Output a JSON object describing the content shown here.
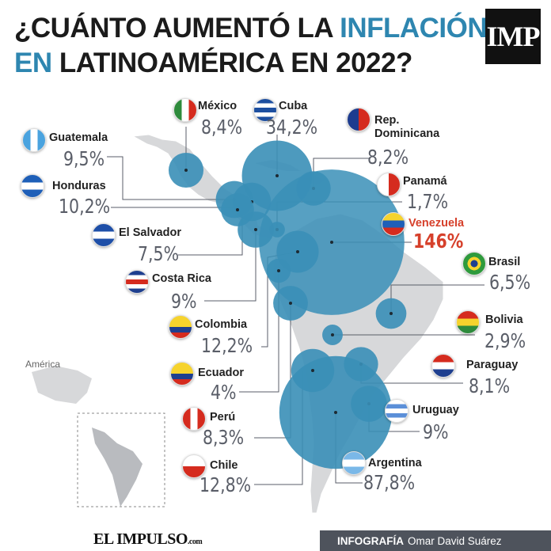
{
  "title": {
    "line1_pre": "¿CUÁNTO AUMENTÓ LA ",
    "line1_hl": "INFLACIÓN",
    "line2_hl": "EN",
    "line2_rest": " LATINOAMÉRICA EN 2022?"
  },
  "logo": "IMP",
  "inset_label": "América",
  "footer": {
    "brand": "EL IMPULSO",
    "brand_suffix": ".com",
    "credit_label": "INFOGRAFÍA",
    "credit_name": "Omar David Suárez"
  },
  "colors": {
    "accent": "#2e86b0",
    "bubble": "#3a8fb7",
    "highlight": "#d6402b",
    "map": "#d7d8da"
  },
  "countries": [
    {
      "name": "México",
      "value": "8,4%",
      "inflation": 8.4,
      "flag": "mexico-flag"
    },
    {
      "name": "Cuba",
      "value": "34,2%",
      "inflation": 34.2,
      "flag": "cuba-flag"
    },
    {
      "name": "Rep.\nDominicana",
      "value": "8,2%",
      "inflation": 8.2,
      "flag": "dominican-republic-flag"
    },
    {
      "name": "Guatemala",
      "value": "9,5%",
      "inflation": 9.5,
      "flag": "guatemala-flag"
    },
    {
      "name": "Honduras",
      "value": "10,2%",
      "inflation": 10.2,
      "flag": "honduras-flag"
    },
    {
      "name": "Panamá",
      "value": "1,7%",
      "inflation": 1.7,
      "flag": "panama-flag"
    },
    {
      "name": "Venezuela",
      "value": "146%",
      "inflation": 146,
      "flag": "venezuela-flag"
    },
    {
      "name": "El Salvador",
      "value": "7,5%",
      "inflation": 7.5,
      "flag": "el-salvador-flag"
    },
    {
      "name": "Brasil",
      "value": "6,5%",
      "inflation": 6.5,
      "flag": "brazil-flag"
    },
    {
      "name": "Costa Rica",
      "value": "9%",
      "inflation": 9,
      "flag": "costa-rica-flag"
    },
    {
      "name": "Bolivia",
      "value": "2,9%",
      "inflation": 2.9,
      "flag": "bolivia-flag"
    },
    {
      "name": "Colombia",
      "value": "12,2%",
      "inflation": 12.2,
      "flag": "colombia-flag"
    },
    {
      "name": "Paraguay",
      "value": "8,1%",
      "inflation": 8.1,
      "flag": "paraguay-flag"
    },
    {
      "name": "Ecuador",
      "value": "4%",
      "inflation": 4,
      "flag": "ecuador-flag"
    },
    {
      "name": "Uruguay",
      "value": "9%",
      "inflation": 9,
      "flag": "uruguay-flag"
    },
    {
      "name": "Perú",
      "value": "8,3%",
      "inflation": 8.3,
      "flag": "peru-flag"
    },
    {
      "name": "Argentina",
      "value": "87,8%",
      "inflation": 87.8,
      "flag": "argentina-flag"
    },
    {
      "name": "Chile",
      "value": "12,8%",
      "inflation": 12.8,
      "flag": "chile-flag"
    }
  ]
}
